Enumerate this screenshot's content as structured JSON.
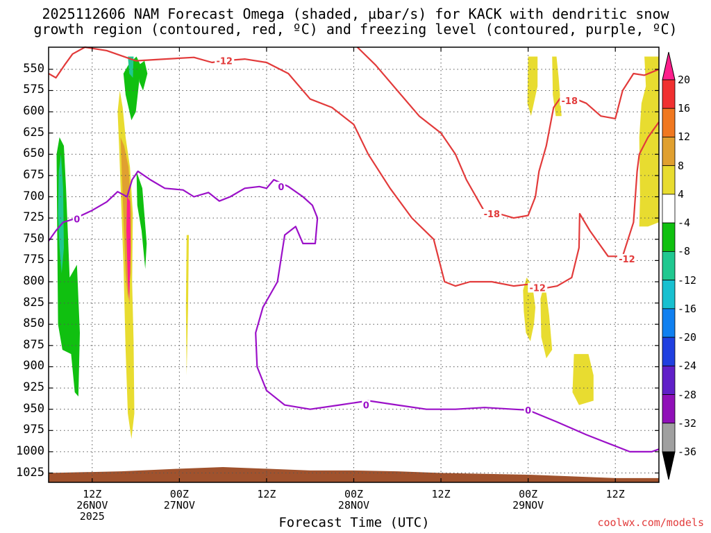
{
  "title_line1": "2025112606 NAM Forecast Omega (shaded, µbar/s) for KACK with dendritic snow",
  "title_line2": "growth region (contoured, red, ºC) and freezing level (contoured, purple, ºC)",
  "chart_data": {
    "type": "heatmap",
    "title": "2025112606 NAM Forecast Omega (shaded, µbar/s) for KACK with dendritic snow growth region (contoured, red, ºC) and freezing level (contoured, purple, ºC)",
    "xlabel": "Forecast Time (UTC)",
    "ylabel": "",
    "x_axis": {
      "unit": "forecast hour from 2025-11-26 06Z",
      "range": [
        0,
        84
      ],
      "ticks": [
        {
          "hour": 6,
          "line1": "12Z",
          "line2": "26NOV",
          "line3": "2025"
        },
        {
          "hour": 18,
          "line1": "00Z",
          "line2": "27NOV",
          "line3": ""
        },
        {
          "hour": 30,
          "line1": "12Z",
          "line2": "",
          "line3": ""
        },
        {
          "hour": 42,
          "line1": "00Z",
          "line2": "28NOV",
          "line3": ""
        },
        {
          "hour": 54,
          "line1": "12Z",
          "line2": "",
          "line3": ""
        },
        {
          "hour": 66,
          "line1": "00Z",
          "line2": "29NOV",
          "line3": ""
        },
        {
          "hour": 78,
          "line1": "12Z",
          "line2": "",
          "line3": ""
        }
      ]
    },
    "y_axis": {
      "unit": "hPa",
      "inverted": true,
      "range": [
        1036,
        524
      ],
      "ticks": [
        550,
        575,
        600,
        625,
        650,
        675,
        700,
        725,
        750,
        775,
        800,
        825,
        850,
        875,
        900,
        925,
        950,
        975,
        1000,
        1025
      ]
    },
    "grid": true,
    "colorbar": {
      "placement": "right",
      "labels": [
        "20",
        "16",
        "12",
        "8",
        "4",
        "-4",
        "-8",
        "-12",
        "-16",
        "-20",
        "-24",
        "-28",
        "-32",
        "-36"
      ],
      "colors": [
        "#ff1e8c",
        "#f03030",
        "#f07820",
        "#e0a030",
        "#e8dc30",
        "#ffffff",
        "#10c010",
        "#20c890",
        "#18c0d0",
        "#1080f0",
        "#2040e0",
        "#6020c8",
        "#9010b8",
        "#a0a0a0",
        "#000000"
      ]
    },
    "shaded_regions": [
      {
        "color": "#10c010",
        "points": [
          [
            10.3,
            555
          ],
          [
            11.1,
            543
          ],
          [
            12.1,
            535
          ],
          [
            12.7,
            546
          ],
          [
            12.0,
            600
          ],
          [
            11.4,
            610
          ],
          [
            10.6,
            580
          ]
        ]
      },
      {
        "color": "#20c890",
        "points": [
          [
            10.9,
            535
          ],
          [
            11.7,
            535
          ],
          [
            11.6,
            560
          ],
          [
            11.1,
            555
          ]
        ]
      },
      {
        "color": "#10c010",
        "points": [
          [
            12.4,
            545
          ],
          [
            13.2,
            540
          ],
          [
            13.6,
            555
          ],
          [
            13.0,
            575
          ],
          [
            12.5,
            565
          ]
        ]
      },
      {
        "color": "#10c010",
        "points": [
          [
            1.1,
            650
          ],
          [
            1.5,
            630
          ],
          [
            2.1,
            640
          ],
          [
            2.4,
            690
          ],
          [
            2.9,
            795
          ],
          [
            3.9,
            780
          ],
          [
            4.3,
            860
          ],
          [
            4.1,
            935
          ],
          [
            3.6,
            930
          ],
          [
            3.1,
            885
          ],
          [
            1.9,
            880
          ],
          [
            1.3,
            850
          ],
          [
            1.2,
            760
          ]
        ]
      },
      {
        "color": "#20c890",
        "points": [
          [
            1.4,
            670
          ],
          [
            1.7,
            650
          ],
          [
            2.0,
            690
          ],
          [
            2.1,
            760
          ],
          [
            1.8,
            790
          ],
          [
            1.5,
            760
          ],
          [
            1.3,
            720
          ]
        ]
      },
      {
        "color": "#e8dc30",
        "points": [
          [
            9.5,
            600
          ],
          [
            9.8,
            575
          ],
          [
            10.2,
            595
          ],
          [
            10.6,
            630
          ],
          [
            11.2,
            665
          ],
          [
            11.6,
            720
          ],
          [
            11.5,
            800
          ],
          [
            11.7,
            870
          ],
          [
            11.8,
            955
          ],
          [
            11.4,
            985
          ],
          [
            10.9,
            955
          ],
          [
            10.6,
            880
          ],
          [
            10.3,
            780
          ],
          [
            9.7,
            640
          ]
        ]
      },
      {
        "color": "#e0a030",
        "points": [
          [
            9.9,
            630
          ],
          [
            10.4,
            640
          ],
          [
            11.0,
            665
          ],
          [
            11.4,
            720
          ],
          [
            11.3,
            790
          ],
          [
            10.9,
            820
          ],
          [
            10.6,
            790
          ],
          [
            10.2,
            700
          ]
        ]
      },
      {
        "color": "#ff1e8c",
        "points": [
          [
            10.8,
            700
          ],
          [
            11.2,
            705
          ],
          [
            11.3,
            760
          ],
          [
            11.1,
            825
          ],
          [
            10.9,
            800
          ],
          [
            10.7,
            740
          ]
        ]
      },
      {
        "color": "#10c010",
        "points": [
          [
            12.1,
            670
          ],
          [
            12.9,
            690
          ],
          [
            13.5,
            755
          ],
          [
            13.3,
            785
          ],
          [
            12.8,
            740
          ],
          [
            12.2,
            710
          ]
        ]
      },
      {
        "color": "#e8dc30",
        "points": [
          [
            19.0,
            745
          ],
          [
            19.3,
            745
          ],
          [
            19.2,
            830
          ],
          [
            19.0,
            910
          ],
          [
            18.9,
            830
          ]
        ]
      },
      {
        "color": "#e8dc30",
        "points": [
          [
            66.0,
            535
          ],
          [
            67.3,
            535
          ],
          [
            67.3,
            570
          ],
          [
            66.4,
            605
          ],
          [
            65.9,
            590
          ]
        ]
      },
      {
        "color": "#e8dc30",
        "points": [
          [
            69.3,
            535
          ],
          [
            69.9,
            535
          ],
          [
            70.2,
            560
          ],
          [
            70.6,
            605
          ],
          [
            69.8,
            605
          ],
          [
            69.4,
            580
          ]
        ]
      },
      {
        "color": "#e8dc30",
        "points": [
          [
            82.0,
            535
          ],
          [
            84.0,
            535
          ],
          [
            84.0,
            730
          ],
          [
            82.5,
            735
          ],
          [
            81.3,
            735
          ],
          [
            81.4,
            700
          ],
          [
            81.3,
            630
          ],
          [
            81.6,
            590
          ],
          [
            82.2,
            570
          ]
        ]
      },
      {
        "color": "#e8dc30",
        "points": [
          [
            65.3,
            810
          ],
          [
            65.8,
            795
          ],
          [
            66.6,
            805
          ],
          [
            67.0,
            830
          ],
          [
            66.8,
            850
          ],
          [
            66.3,
            870
          ],
          [
            65.7,
            860
          ],
          [
            65.4,
            835
          ]
        ]
      },
      {
        "color": "#e8dc30",
        "points": [
          [
            67.7,
            820
          ],
          [
            68.3,
            800
          ],
          [
            68.9,
            840
          ],
          [
            69.3,
            880
          ],
          [
            68.5,
            890
          ],
          [
            67.8,
            865
          ]
        ]
      },
      {
        "color": "#e8dc30",
        "points": [
          [
            72.3,
            885
          ],
          [
            74.3,
            885
          ],
          [
            75.0,
            910
          ],
          [
            75.0,
            940
          ],
          [
            73.0,
            945
          ],
          [
            72.1,
            930
          ]
        ]
      }
    ],
    "contours": [
      {
        "color": "#e23a3a",
        "label": "-12",
        "label_at": [
          24.2,
          540
        ],
        "points": [
          [
            0,
            555
          ],
          [
            1.0,
            560
          ],
          [
            2.2,
            545
          ],
          [
            3.3,
            532
          ],
          [
            5.0,
            524
          ],
          [
            8.0,
            528
          ],
          [
            12.0,
            540
          ],
          [
            16.0,
            538
          ],
          [
            20.0,
            536
          ],
          [
            22.5,
            542
          ],
          [
            24.0,
            540
          ],
          [
            27.0,
            538
          ],
          [
            30.0,
            542
          ],
          [
            33.0,
            555
          ],
          [
            36.0,
            585
          ],
          [
            39.0,
            595
          ],
          [
            42.0,
            615
          ],
          [
            44.0,
            650
          ],
          [
            47.0,
            690
          ],
          [
            50.0,
            725
          ],
          [
            53.0,
            750
          ],
          [
            54.5,
            800
          ],
          [
            56.0,
            805
          ],
          [
            58.0,
            800
          ],
          [
            61.0,
            800
          ],
          [
            64.0,
            805
          ],
          [
            66.0,
            803
          ],
          [
            68.0,
            808
          ],
          [
            70.0,
            805
          ],
          [
            72.0,
            795
          ],
          [
            73.0,
            760
          ],
          [
            73.1,
            720
          ],
          [
            74.5,
            740
          ],
          [
            77.0,
            770
          ],
          [
            79.0,
            770
          ],
          [
            80.5,
            730
          ],
          [
            81.0,
            670
          ],
          [
            81.3,
            650
          ],
          [
            82.5,
            630
          ],
          [
            84.0,
            612
          ]
        ]
      },
      {
        "color": "#e23a3a",
        "label": "-18",
        "label_at": [
          61.0,
          720
        ],
        "points": [
          [
            42.5,
            524
          ],
          [
            45.0,
            545
          ],
          [
            48.0,
            575
          ],
          [
            51.0,
            605
          ],
          [
            54.0,
            625
          ],
          [
            56.0,
            650
          ],
          [
            57.5,
            680
          ],
          [
            59.5,
            710
          ],
          [
            60.5,
            725
          ],
          [
            62.0,
            720
          ],
          [
            64.0,
            725
          ],
          [
            66.0,
            722
          ],
          [
            67.0,
            700
          ],
          [
            67.5,
            670
          ],
          [
            68.5,
            640
          ],
          [
            69.5,
            595
          ],
          [
            70.5,
            583
          ],
          [
            72.0,
            583
          ],
          [
            74.0,
            590
          ],
          [
            76.0,
            605
          ],
          [
            78.0,
            608
          ],
          [
            79.0,
            575
          ],
          [
            80.5,
            555
          ],
          [
            82.0,
            557
          ],
          [
            84.0,
            550
          ]
        ]
      },
      {
        "color": "#9b10c8",
        "label": "0",
        "label_at": [
          32.0,
          688
        ],
        "points": [
          [
            0,
            752
          ],
          [
            1.0,
            740
          ],
          [
            2.0,
            730
          ],
          [
            3.5,
            726
          ],
          [
            6.0,
            716
          ],
          [
            8.0,
            706
          ],
          [
            9.5,
            694
          ],
          [
            10.8,
            700
          ],
          [
            11.5,
            680
          ],
          [
            12.3,
            670
          ],
          [
            14.0,
            680
          ],
          [
            16.0,
            690
          ],
          [
            18.5,
            692
          ],
          [
            20.0,
            700
          ],
          [
            22.0,
            695
          ],
          [
            23.5,
            705
          ],
          [
            25.0,
            700
          ],
          [
            27.0,
            690
          ],
          [
            29.0,
            688
          ],
          [
            30.0,
            690
          ],
          [
            31.0,
            680
          ],
          [
            33.0,
            688
          ],
          [
            35.0,
            700
          ],
          [
            36.3,
            710
          ],
          [
            37.0,
            725
          ],
          [
            36.7,
            755
          ],
          [
            35.0,
            755
          ],
          [
            34.0,
            735
          ],
          [
            32.5,
            745
          ],
          [
            31.5,
            800
          ],
          [
            29.5,
            830
          ],
          [
            28.5,
            860
          ],
          [
            28.7,
            900
          ],
          [
            30.0,
            928
          ],
          [
            32.5,
            945
          ],
          [
            36.0,
            950
          ],
          [
            40.0,
            945
          ],
          [
            44.0,
            940
          ],
          [
            48.0,
            945
          ],
          [
            52.0,
            950
          ],
          [
            56.0,
            950
          ],
          [
            60.0,
            948
          ],
          [
            64.0,
            950
          ],
          [
            66.0,
            951
          ],
          [
            70.0,
            965
          ],
          [
            74.0,
            980
          ],
          [
            77.0,
            990
          ],
          [
            80.0,
            1000
          ],
          [
            83.0,
            1000
          ],
          [
            84.0,
            997
          ]
        ]
      }
    ],
    "contour_labels": [
      {
        "text": "-12",
        "color": "#e23a3a",
        "at": [
          24.2,
          540
        ]
      },
      {
        "text": "-18",
        "color": "#e23a3a",
        "at": [
          61.0,
          720
        ]
      },
      {
        "text": "-12",
        "color": "#e23a3a",
        "at": [
          67.3,
          807
        ]
      },
      {
        "text": "-18",
        "color": "#e23a3a",
        "at": [
          71.7,
          587
        ]
      },
      {
        "text": "-12",
        "color": "#e23a3a",
        "at": [
          79.6,
          773
        ]
      },
      {
        "text": "0",
        "color": "#9b10c8",
        "at": [
          3.9,
          726
        ]
      },
      {
        "text": "0",
        "color": "#9b10c8",
        "at": [
          32.0,
          688
        ]
      },
      {
        "text": "0",
        "color": "#9b10c8",
        "at": [
          43.7,
          945
        ]
      },
      {
        "text": "0",
        "color": "#9b10c8",
        "at": [
          66.0,
          951
        ]
      }
    ],
    "terrain": {
      "color": "#a0522d",
      "surface": [
        [
          0,
          1025
        ],
        [
          10,
          1023
        ],
        [
          18,
          1020
        ],
        [
          24,
          1018
        ],
        [
          30,
          1020
        ],
        [
          36,
          1022
        ],
        [
          42,
          1022
        ],
        [
          48,
          1023
        ],
        [
          54,
          1025
        ],
        [
          60,
          1026
        ],
        [
          66,
          1027
        ],
        [
          72,
          1029
        ],
        [
          78,
          1031
        ],
        [
          84,
          1031
        ]
      ]
    }
  },
  "xlabel": "Forecast Time (UTC)",
  "credit": "coolwx.com/models"
}
